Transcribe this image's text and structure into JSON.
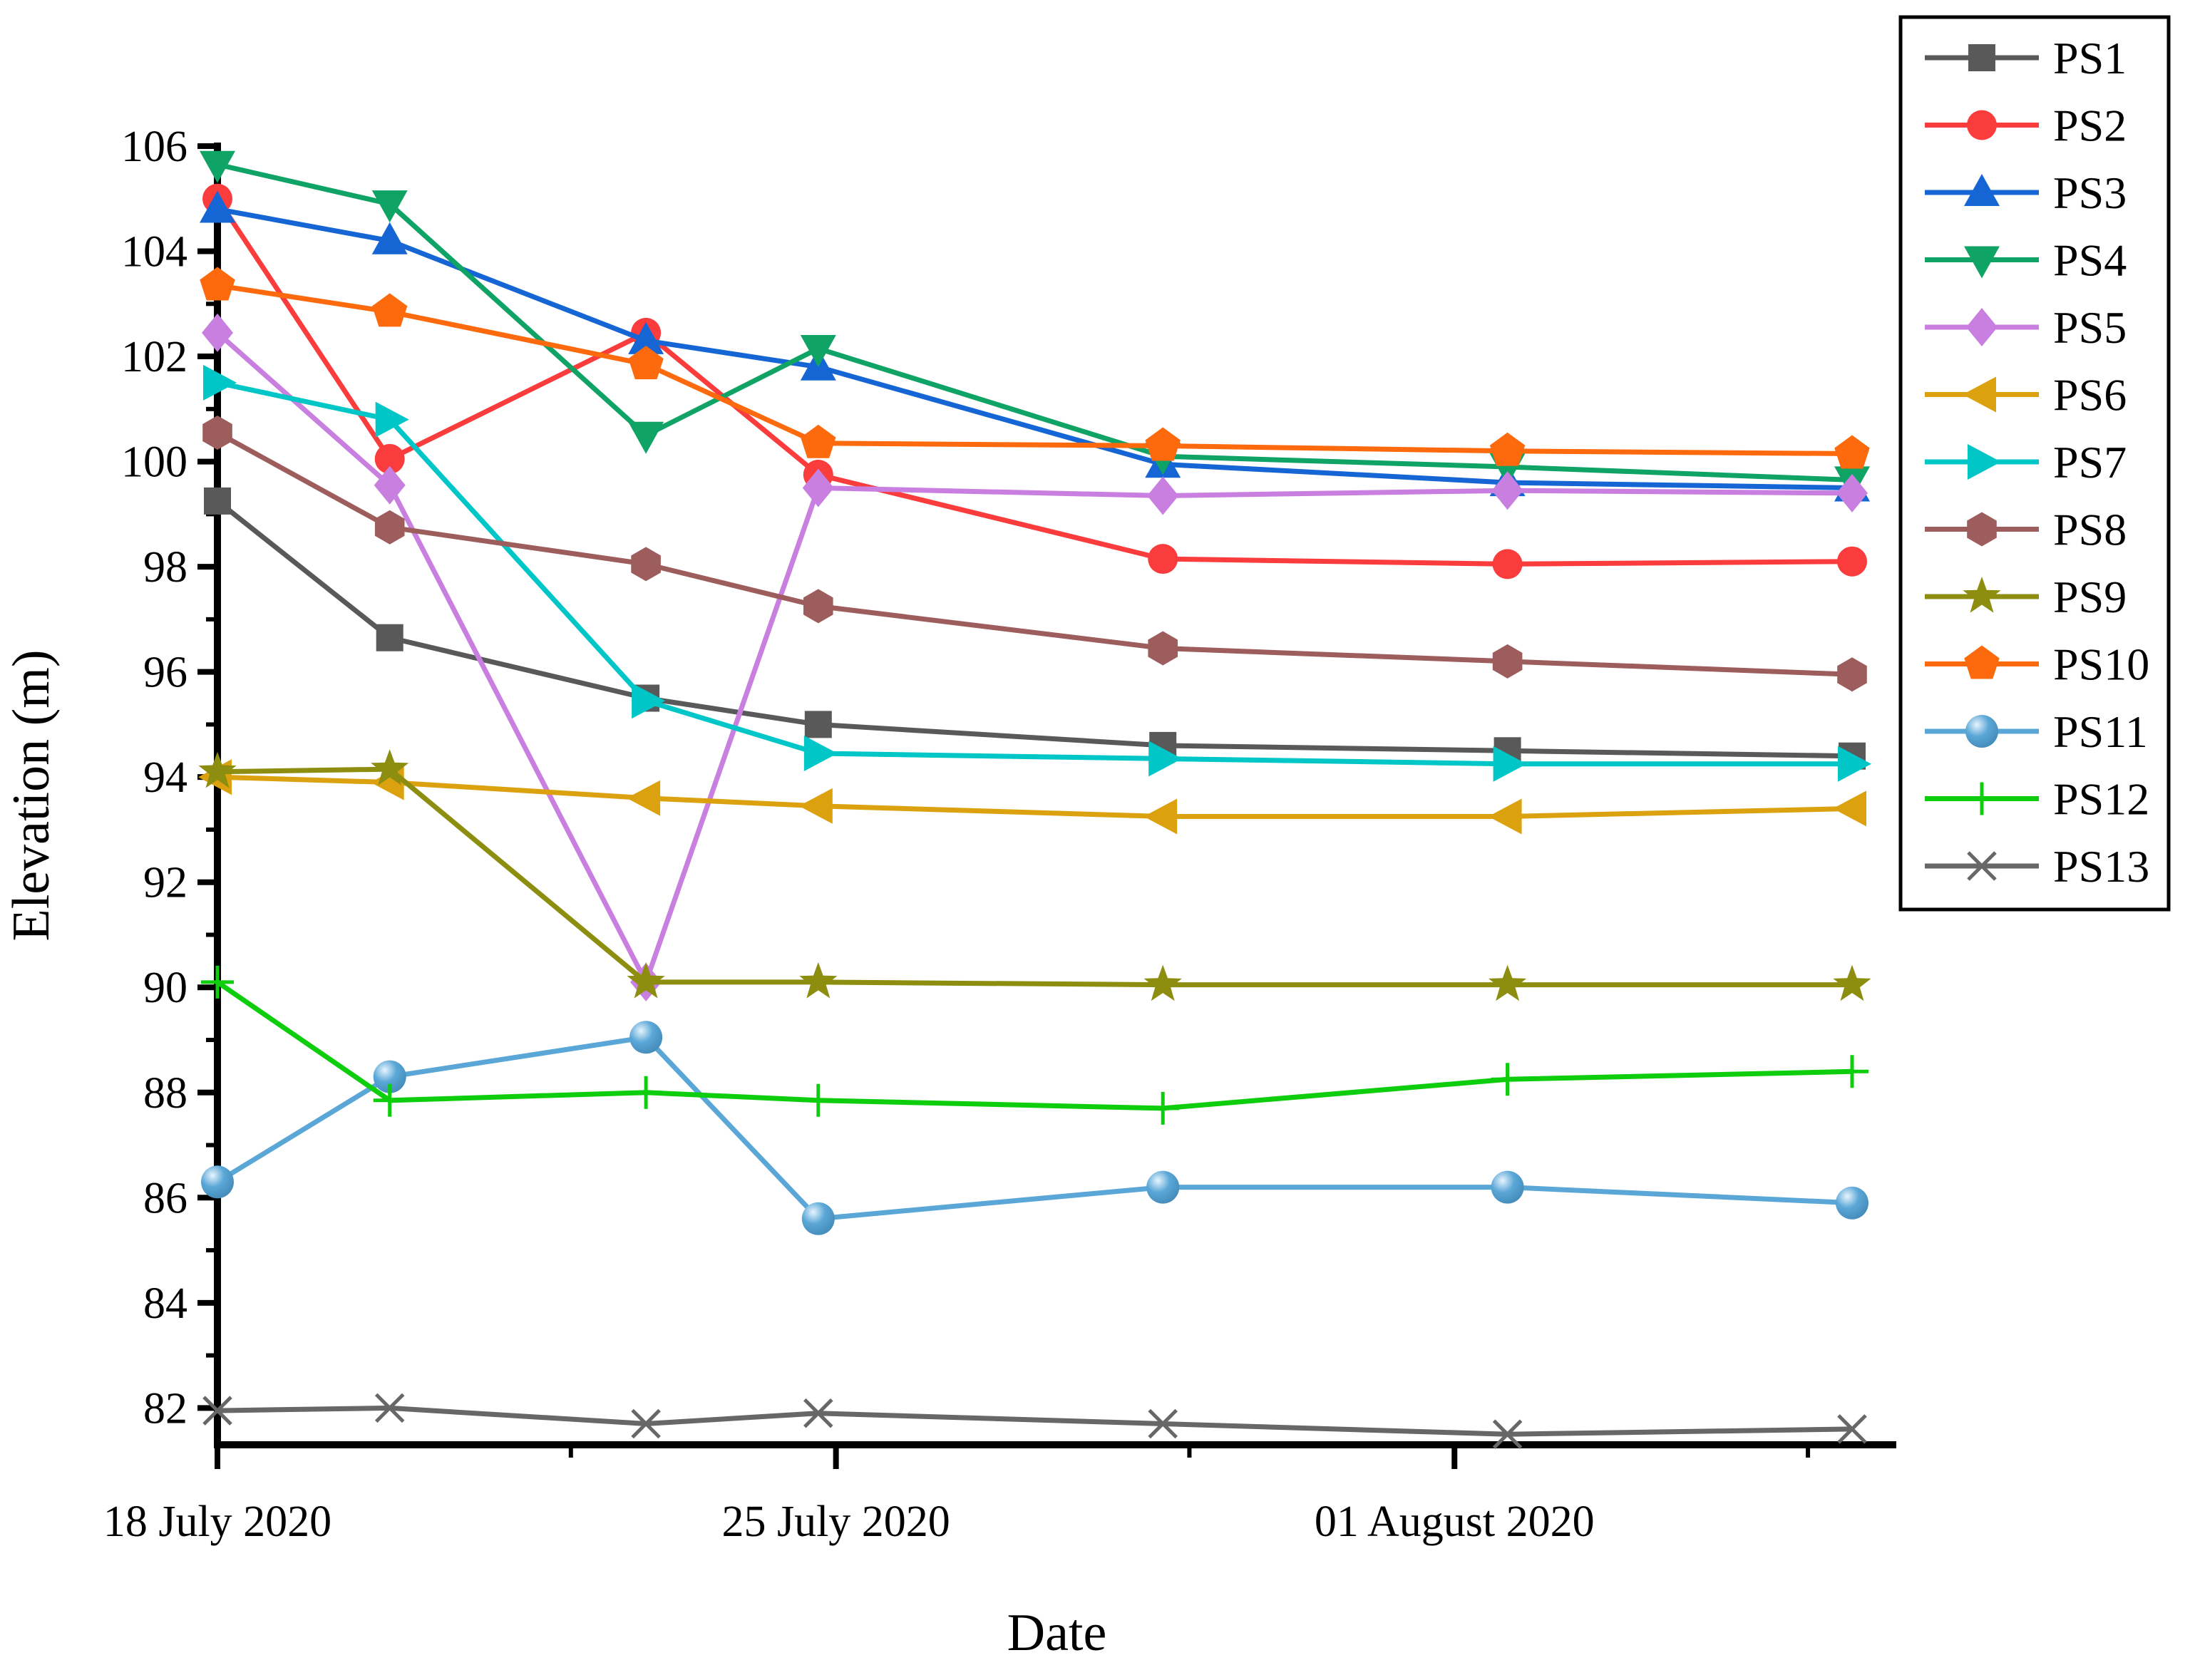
{
  "figure": {
    "background": "#ffffff",
    "axis_color": "#000000"
  },
  "chart_data": {
    "type": "line",
    "title": "",
    "xlabel": "Date",
    "ylabel": "Elevation (m)",
    "grid": false,
    "legend_position": "top-right",
    "xlim": [
      0,
      19.0
    ],
    "ylim": [
      81.3,
      106.0
    ],
    "x_days": [
      0,
      1.95,
      4.85,
      6.8,
      10.7,
      14.6,
      18.5
    ],
    "x_major_ticks": [
      {
        "day": 0,
        "label": "18 July 2020"
      },
      {
        "day": 7,
        "label": "25 July 2020"
      },
      {
        "day": 14,
        "label": "01 August 2020"
      }
    ],
    "x_minor_ticks": [
      4,
      11,
      18
    ],
    "y_major_ticks": [
      82,
      84,
      86,
      88,
      90,
      92,
      94,
      96,
      98,
      100,
      102,
      104,
      106
    ],
    "y_minor_ticks": [
      83,
      85,
      87,
      89,
      91,
      93,
      95,
      97,
      99,
      101,
      103,
      105
    ],
    "series": [
      {
        "name": "PS1",
        "color": "#595959",
        "marker": "square",
        "values": [
          99.25,
          96.65,
          95.5,
          95.0,
          94.6,
          94.5,
          94.4
        ]
      },
      {
        "name": "PS2",
        "color": "#fa3c3c",
        "marker": "circle",
        "values": [
          105.0,
          100.05,
          102.45,
          99.75,
          98.15,
          98.05,
          98.1
        ]
      },
      {
        "name": "PS3",
        "color": "#1566d4",
        "marker": "triangle-up",
        "values": [
          104.8,
          104.2,
          102.3,
          101.8,
          99.95,
          99.6,
          99.5
        ]
      },
      {
        "name": "PS4",
        "color": "#0fa365",
        "marker": "triangle-down",
        "values": [
          105.65,
          104.9,
          100.5,
          102.15,
          100.1,
          99.9,
          99.65
        ]
      },
      {
        "name": "PS5",
        "color": "#c87fe0",
        "marker": "diamond",
        "values": [
          102.45,
          99.55,
          90.1,
          99.5,
          99.35,
          99.45,
          99.4
        ]
      },
      {
        "name": "PS6",
        "color": "#dca10e",
        "marker": "triangle-left",
        "values": [
          94.0,
          93.9,
          93.6,
          93.45,
          93.25,
          93.25,
          93.4
        ]
      },
      {
        "name": "PS7",
        "color": "#00c6c8",
        "marker": "triangle-right",
        "values": [
          101.5,
          100.8,
          95.45,
          94.45,
          94.35,
          94.25,
          94.25
        ]
      },
      {
        "name": "PS8",
        "color": "#9d5d5c",
        "marker": "hexagon",
        "values": [
          100.55,
          98.75,
          98.05,
          97.25,
          96.45,
          96.2,
          95.95
        ]
      },
      {
        "name": "PS9",
        "color": "#8d8d10",
        "marker": "star",
        "values": [
          94.1,
          94.15,
          90.1,
          90.1,
          90.05,
          90.05,
          90.05
        ]
      },
      {
        "name": "PS10",
        "color": "#fd6a0d",
        "marker": "pentagon",
        "values": [
          103.35,
          102.85,
          101.85,
          100.35,
          100.3,
          100.2,
          100.15
        ]
      },
      {
        "name": "PS11",
        "color": "#5aa7d7",
        "marker": "sphere",
        "values": [
          86.3,
          88.3,
          89.05,
          85.6,
          86.2,
          86.2,
          85.9
        ]
      },
      {
        "name": "PS12",
        "color": "#0dcd0d",
        "marker": "plus",
        "values": [
          90.1,
          87.85,
          88.0,
          87.85,
          87.7,
          88.25,
          88.4
        ]
      },
      {
        "name": "PS13",
        "color": "#676767",
        "marker": "x",
        "values": [
          81.95,
          82.0,
          81.7,
          81.9,
          81.7,
          81.5,
          81.6
        ]
      }
    ],
    "legend": {
      "labels": [
        "PS1",
        "PS2",
        "PS3",
        "PS4",
        "PS5",
        "PS6",
        "PS7",
        "PS8",
        "PS9",
        "PS10",
        "PS11",
        "PS12",
        "PS13"
      ],
      "border_color": "#000000",
      "background": "#ffffff"
    }
  }
}
